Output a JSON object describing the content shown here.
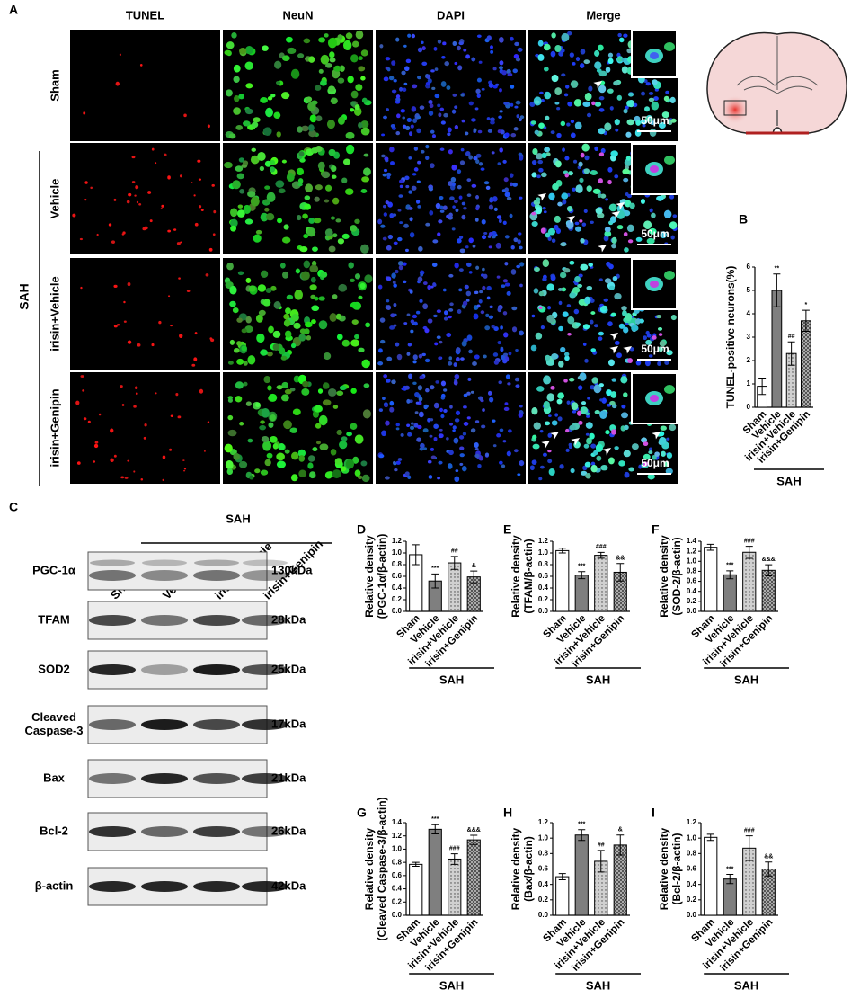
{
  "panel_a": {
    "letter": "A",
    "columns": [
      "TUNEL",
      "NeuN",
      "DAPI",
      "Merge"
    ],
    "rows": [
      "Sham",
      "Vehicle",
      "irisin+Vehicle",
      "irisin+Genipin"
    ],
    "group": "SAH",
    "scale_bar": "50μm"
  },
  "panel_c": {
    "letter": "C",
    "group": "SAH",
    "lanes": [
      "Sham",
      "Vehicle",
      "irisin+Vehicle",
      "irisin+Genipin"
    ],
    "proteins": [
      [
        "PGC-1α"
      ],
      [
        "TFAM"
      ],
      [
        "SOD2"
      ],
      [
        "Cleaved",
        "Caspase-3"
      ],
      [
        "Bax"
      ],
      [
        "Bcl-2"
      ],
      [
        "β-actin"
      ]
    ],
    "sizes": [
      "130kDa",
      "28kDa",
      "25kDa",
      "17kDa",
      "21kDa",
      "26kDa",
      "42kDa"
    ]
  },
  "chart_data": [
    {
      "type": "bar",
      "panel": "B",
      "ylabel": "TUNEL-positive neurons(%)",
      "categories": [
        "Sham",
        "Vehicle",
        "irisin+Vehicle",
        "irisin+Genipin"
      ],
      "group_label": "SAH",
      "values": [
        0.9,
        5.0,
        2.3,
        3.7
      ],
      "errors": [
        0.35,
        0.7,
        0.5,
        0.45
      ],
      "annotations": [
        null,
        "**",
        "##",
        "*"
      ],
      "ylim": [
        0,
        6
      ],
      "yticks": [
        0,
        1,
        2,
        3,
        4,
        5,
        6
      ],
      "colors": [
        "#ffffff",
        "#7f7f7f",
        "#d0d0d0",
        "#ababab"
      ],
      "patterns": [
        "solid",
        "solid",
        "dots",
        "checks"
      ]
    },
    {
      "type": "bar",
      "panel": "D",
      "ylabel": [
        "Relative density",
        "(PGC-1α/β-actin)"
      ],
      "categories": [
        "Sham",
        "Vehicle",
        "irisin+Vehicle",
        "irisin+Genipin"
      ],
      "group_label": "SAH",
      "values": [
        0.97,
        0.52,
        0.83,
        0.59
      ],
      "errors": [
        0.17,
        0.12,
        0.11,
        0.1
      ],
      "annotations": [
        null,
        "***",
        "##",
        "&"
      ],
      "ylim": [
        0,
        1.2
      ],
      "yticks": [
        {
          "value": 0,
          "label": "0.0"
        },
        0.2,
        0.4,
        0.6,
        0.8,
        {
          "value": 1,
          "label": "1.0"
        },
        1.2
      ],
      "colors": [
        "#ffffff",
        "#7f7f7f",
        "#d0d0d0",
        "#ababab"
      ],
      "patterns": [
        "solid",
        "solid",
        "dots",
        "checks"
      ]
    },
    {
      "type": "bar",
      "panel": "E",
      "ylabel": [
        "Relative density",
        "(TFAM/β-actin)"
      ],
      "categories": [
        "Sham",
        "Vehicle",
        "irisin+Vehicle",
        "irisin+Genipin"
      ],
      "group_label": "SAH",
      "values": [
        1.04,
        0.62,
        0.96,
        0.67
      ],
      "errors": [
        0.04,
        0.06,
        0.05,
        0.15
      ],
      "annotations": [
        null,
        "***",
        "###",
        "&&"
      ],
      "ylim": [
        0,
        1.2
      ],
      "yticks": [
        {
          "value": 0,
          "label": "0.0"
        },
        0.2,
        0.4,
        0.6,
        0.8,
        {
          "value": 1,
          "label": "1.0"
        },
        1.2
      ],
      "colors": [
        "#ffffff",
        "#7f7f7f",
        "#d0d0d0",
        "#ababab"
      ],
      "patterns": [
        "solid",
        "solid",
        "dots",
        "checks"
      ]
    },
    {
      "type": "bar",
      "panel": "F",
      "ylabel": [
        "Relative density",
        "(SOD-2/β-actin)"
      ],
      "categories": [
        "Sham",
        "Vehicle",
        "irisin+Vehicle",
        "irisin+Genipin"
      ],
      "group_label": "SAH",
      "values": [
        1.28,
        0.73,
        1.18,
        0.82
      ],
      "errors": [
        0.06,
        0.08,
        0.12,
        0.11
      ],
      "annotations": [
        null,
        "***",
        "###",
        "&&&"
      ],
      "ylim": [
        0,
        1.4
      ],
      "yticks": [
        {
          "value": 0,
          "label": "0.0"
        },
        0.2,
        0.4,
        0.6,
        0.8,
        {
          "value": 1,
          "label": "1.0"
        },
        1.2,
        1.4
      ],
      "colors": [
        "#ffffff",
        "#7f7f7f",
        "#d0d0d0",
        "#ababab"
      ],
      "patterns": [
        "solid",
        "solid",
        "dots",
        "checks"
      ]
    },
    {
      "type": "bar",
      "panel": "G",
      "ylabel": [
        "Relative density",
        "(Cleaved Caspase-3/β-actin)"
      ],
      "categories": [
        "Sham",
        "Vehicle",
        "irisin+Vehicle",
        "irisin+Genipin"
      ],
      "group_label": "SAH",
      "values": [
        0.77,
        1.3,
        0.85,
        1.14
      ],
      "errors": [
        0.03,
        0.07,
        0.08,
        0.07
      ],
      "annotations": [
        null,
        "***",
        "###",
        "&&&"
      ],
      "ylim": [
        0,
        1.4
      ],
      "yticks": [
        {
          "value": 0,
          "label": "0.0"
        },
        0.2,
        0.4,
        0.6,
        0.8,
        {
          "value": 1,
          "label": "1.0"
        },
        1.2,
        1.4
      ],
      "colors": [
        "#ffffff",
        "#7f7f7f",
        "#d0d0d0",
        "#ababab"
      ],
      "patterns": [
        "solid",
        "solid",
        "dots",
        "checks"
      ]
    },
    {
      "type": "bar",
      "panel": "H",
      "ylabel": [
        "Relative density",
        "(Bax/β-actin)"
      ],
      "categories": [
        "Sham",
        "Vehicle",
        "irisin+Vehicle",
        "irisin+Genipin"
      ],
      "group_label": "SAH",
      "values": [
        0.5,
        1.04,
        0.7,
        0.91
      ],
      "errors": [
        0.04,
        0.07,
        0.14,
        0.13
      ],
      "annotations": [
        null,
        "***",
        "##",
        "&"
      ],
      "ylim": [
        0,
        1.2
      ],
      "yticks": [
        {
          "value": 0,
          "label": "0.0"
        },
        0.2,
        0.4,
        0.6,
        0.8,
        {
          "value": 1,
          "label": "1.0"
        },
        1.2
      ],
      "colors": [
        "#ffffff",
        "#7f7f7f",
        "#d0d0d0",
        "#ababab"
      ],
      "patterns": [
        "solid",
        "solid",
        "dots",
        "checks"
      ]
    },
    {
      "type": "bar",
      "panel": "I",
      "ylabel": [
        "Relative density",
        "(Bcl-2/β-actin)"
      ],
      "categories": [
        "Sham",
        "Vehicle",
        "irisin+Vehicle",
        "irisin+Genipin"
      ],
      "group_label": "SAH",
      "values": [
        1.01,
        0.47,
        0.87,
        0.6
      ],
      "errors": [
        0.04,
        0.06,
        0.16,
        0.09
      ],
      "annotations": [
        null,
        "***",
        "###",
        "&&"
      ],
      "ylim": [
        0,
        1.2
      ],
      "yticks": [
        {
          "value": 0,
          "label": "0.0"
        },
        0.2,
        0.4,
        0.6,
        0.8,
        {
          "value": 1,
          "label": "1.0"
        },
        1.2
      ],
      "colors": [
        "#ffffff",
        "#7f7f7f",
        "#d0d0d0",
        "#ababab"
      ],
      "patterns": [
        "solid",
        "solid",
        "dots",
        "checks"
      ]
    }
  ]
}
